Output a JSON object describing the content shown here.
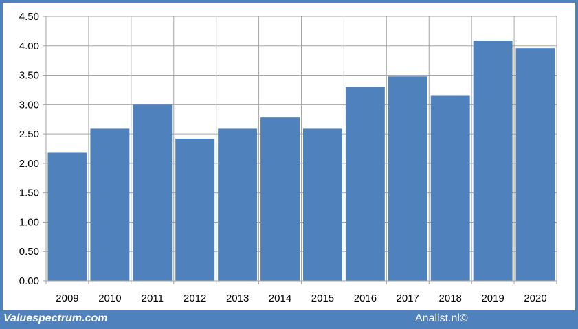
{
  "chart_data": {
    "type": "bar",
    "categories": [
      "2009",
      "2010",
      "2011",
      "2012",
      "2013",
      "2014",
      "2015",
      "2016",
      "2017",
      "2018",
      "2019",
      "2020"
    ],
    "values": [
      2.18,
      2.59,
      3.0,
      2.42,
      2.59,
      2.78,
      2.59,
      3.3,
      3.48,
      3.15,
      4.09,
      3.96
    ],
    "yticks": [
      "0.00",
      "0.50",
      "1.00",
      "1.50",
      "2.00",
      "2.50",
      "3.00",
      "3.50",
      "4.00",
      "4.50"
    ],
    "ylim": [
      0,
      4.5
    ],
    "grid": true,
    "bar_color": "#4f81bd",
    "title": "",
    "xlabel": "",
    "ylabel": ""
  },
  "footer": {
    "left": "Valuespectrum.com",
    "right": "Analist.nl©"
  },
  "colors": {
    "frame": "#4f81bd",
    "bar": "#4f81bd",
    "grid": "#a6a6a6"
  }
}
